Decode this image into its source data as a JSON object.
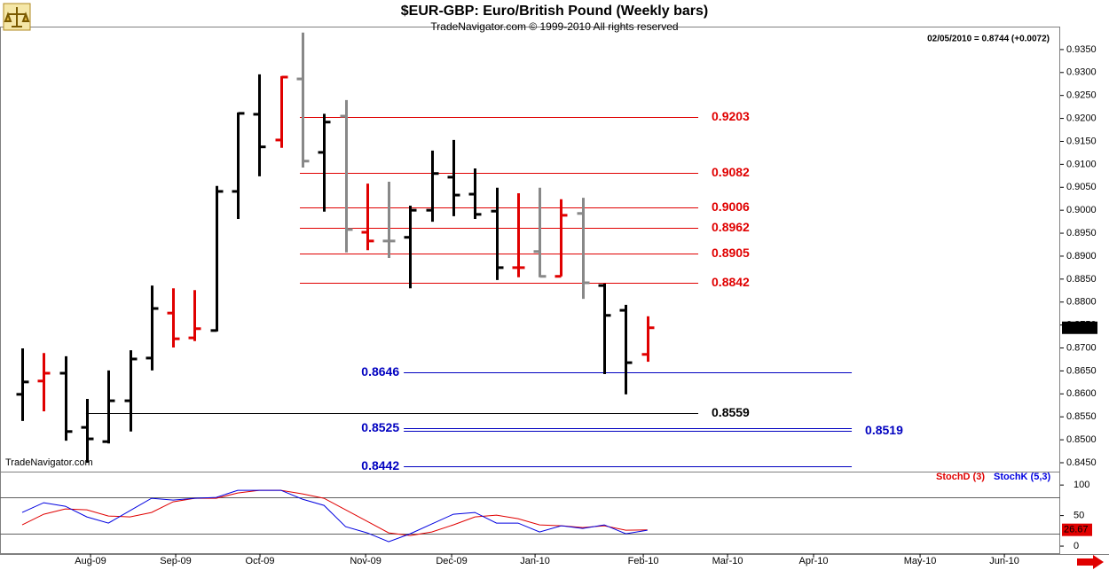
{
  "chart_data": {
    "type": "ohlc",
    "title": "$EUR-GBP:  Euro/British Pound  (Weekly bars)",
    "subtitle": "TradeNavigator.com © 1999-2010 All rights reserved",
    "info": "02/05/2010 = 0.8744 (+0.0072)",
    "watermark": "TradeNavigator.com",
    "xlim": [
      -1.03,
      48.15
    ],
    "xticks": [
      {
        "value": 3.17,
        "label": "Aug-09"
      },
      {
        "value": 7.12,
        "label": "Sep-09"
      },
      {
        "value": 11.03,
        "label": "Oct-09"
      },
      {
        "value": 15.93,
        "label": "Nov-09"
      },
      {
        "value": 19.92,
        "label": "Dec-09"
      },
      {
        "value": 23.79,
        "label": "Jan-10"
      },
      {
        "value": 28.81,
        "label": "Feb-10"
      },
      {
        "value": 32.72,
        "label": "Mar-10"
      },
      {
        "value": 36.71,
        "label": "Apr-10"
      },
      {
        "value": 41.65,
        "label": "May-10"
      },
      {
        "value": 45.56,
        "label": "Jun-10"
      }
    ],
    "ylim": [
      0.84307,
      0.94
    ],
    "yticks": [
      {
        "value": 0.845,
        "label": "0.8450"
      },
      {
        "value": 0.85,
        "label": "0.8500"
      },
      {
        "value": 0.855,
        "label": "0.8550"
      },
      {
        "value": 0.86,
        "label": "0.8600"
      },
      {
        "value": 0.865,
        "label": "0.8650"
      },
      {
        "value": 0.87,
        "label": "0.8700"
      },
      {
        "value": 0.875,
        "label": "0.8750"
      },
      {
        "value": 0.88,
        "label": "0.8800"
      },
      {
        "value": 0.885,
        "label": "0.8850"
      },
      {
        "value": 0.89,
        "label": "0.8900"
      },
      {
        "value": 0.895,
        "label": "0.8950"
      },
      {
        "value": 0.9,
        "label": "0.9000"
      },
      {
        "value": 0.905,
        "label": "0.9050"
      },
      {
        "value": 0.91,
        "label": "0.9100"
      },
      {
        "value": 0.915,
        "label": "0.9150"
      },
      {
        "value": 0.92,
        "label": "0.9200"
      },
      {
        "value": 0.925,
        "label": "0.9250"
      },
      {
        "value": 0.93,
        "label": "0.9300"
      },
      {
        "value": 0.935,
        "label": "0.9350"
      }
    ],
    "ohlc": {
      "open": [
        0.8599,
        0.8628,
        0.8645,
        0.8527,
        0.8496,
        0.8585,
        0.8678,
        0.8776,
        0.8722,
        0.8738,
        0.9041,
        0.9209,
        0.9153,
        0.9286,
        0.9126,
        0.9205,
        0.8952,
        0.8933,
        0.8941,
        0.9,
        0.9072,
        0.9035,
        0.8998,
        0.8875,
        0.891,
        0.8856,
        0.8993,
        0.8836,
        0.8782,
        0.8686
      ],
      "high": [
        0.8699,
        0.8689,
        0.8682,
        0.8589,
        0.8651,
        0.8695,
        0.8836,
        0.883,
        0.8826,
        0.9053,
        0.9213,
        0.9296,
        0.9292,
        0.9387,
        0.921,
        0.924,
        0.9058,
        0.9062,
        0.901,
        0.913,
        0.9153,
        0.9091,
        0.9049,
        0.9037,
        0.9049,
        0.9024,
        0.9027,
        0.884,
        0.8794,
        0.8769
      ],
      "low": [
        0.8541,
        0.8562,
        0.8498,
        0.845,
        0.8492,
        0.8518,
        0.8651,
        0.8701,
        0.8715,
        0.8736,
        0.8981,
        0.9074,
        0.9136,
        0.9093,
        0.8997,
        0.8908,
        0.8913,
        0.8896,
        0.883,
        0.8975,
        0.8987,
        0.8981,
        0.8848,
        0.8854,
        0.8854,
        0.8856,
        0.8807,
        0.8643,
        0.8599,
        0.867
      ],
      "close": [
        0.8626,
        0.8645,
        0.8518,
        0.8502,
        0.8585,
        0.8676,
        0.8786,
        0.872,
        0.8742,
        0.9041,
        0.9211,
        0.9138,
        0.929,
        0.9107,
        0.9192,
        0.8958,
        0.8933,
        0.8933,
        0.9,
        0.908,
        0.9033,
        0.8991,
        0.8875,
        0.8875,
        0.8856,
        0.8989,
        0.8842,
        0.8771,
        0.8668,
        0.8744
      ],
      "colors": [
        "#000000",
        "#e00000",
        "#000000",
        "#000000",
        "#000000",
        "#000000",
        "#000000",
        "#e00000",
        "#e00000",
        "#000000",
        "#000000",
        "#000000",
        "#e00000",
        "#888888",
        "#000000",
        "#888888",
        "#e00000",
        "#888888",
        "#000000",
        "#000000",
        "#000000",
        "#000000",
        "#000000",
        "#e00000",
        "#888888",
        "#e00000",
        "#888888",
        "#000000",
        "#000000",
        "#e00000"
      ]
    },
    "last_price": 0.8744,
    "levels": [
      {
        "value": 0.9203,
        "color": "#e00000",
        "from": 12.88,
        "to": 31.36,
        "label_side": "right"
      },
      {
        "value": 0.9082,
        "color": "#e00000",
        "from": 12.88,
        "to": 31.36,
        "label_side": "right"
      },
      {
        "value": 0.9006,
        "color": "#e00000",
        "from": 12.88,
        "to": 31.36,
        "label_side": "right"
      },
      {
        "value": 0.8962,
        "color": "#e00000",
        "from": 12.88,
        "to": 31.36,
        "label_side": "right"
      },
      {
        "value": 0.8905,
        "color": "#e00000",
        "from": 12.88,
        "to": 31.36,
        "label_side": "right"
      },
      {
        "value": 0.8842,
        "color": "#e00000",
        "from": 12.88,
        "to": 31.36,
        "label_side": "right"
      },
      {
        "value": 0.8646,
        "color": "#0000c0",
        "from": 17.7,
        "to": 38.48,
        "label_side": "left"
      },
      {
        "value": 0.8559,
        "color": "#000000",
        "from": 2.96,
        "to": 31.36,
        "label_side": "right"
      },
      {
        "value": 0.8525,
        "color": "#0000c0",
        "from": 17.7,
        "to": 38.48,
        "label_side": "left"
      },
      {
        "value": 0.8519,
        "color": "#0000c0",
        "from": 17.7,
        "to": 38.48,
        "label_side": "right"
      },
      {
        "value": 0.8442,
        "color": "#0000c0",
        "from": 17.7,
        "to": 38.48,
        "label_side": "left"
      }
    ],
    "stoch": {
      "type": "line",
      "ylim": [
        -13,
        122
      ],
      "yticks": [
        100,
        50,
        0
      ],
      "ref_lines": [
        80,
        20
      ],
      "series": [
        {
          "name": "StochD (3)",
          "color": "#e00000",
          "values": [
            34.8,
            52.2,
            60.9,
            59.4,
            49.3,
            47.8,
            55.1,
            72.5,
            78.3,
            78.3,
            87.0,
            91.3,
            91.3,
            85.5,
            78.3,
            59.4,
            40.6,
            21.7,
            17.4,
            23.2,
            34.8,
            47.8,
            50.7,
            44.9,
            34.8,
            33.3,
            30.4,
            33.3,
            26.1,
            26.67
          ]
        },
        {
          "name": "StochK (5,3)",
          "color": "#0000e0",
          "values": [
            55.1,
            71.0,
            65.2,
            47.8,
            37.7,
            58.0,
            78.3,
            75.4,
            78.3,
            79.7,
            91.3,
            91.3,
            91.3,
            76.8,
            66.7,
            31.9,
            21.7,
            7.2,
            20.3,
            36.2,
            52.2,
            55.1,
            37.7,
            37.7,
            23.2,
            33.3,
            29.0,
            34.8,
            20.3,
            26.1
          ]
        }
      ]
    }
  }
}
